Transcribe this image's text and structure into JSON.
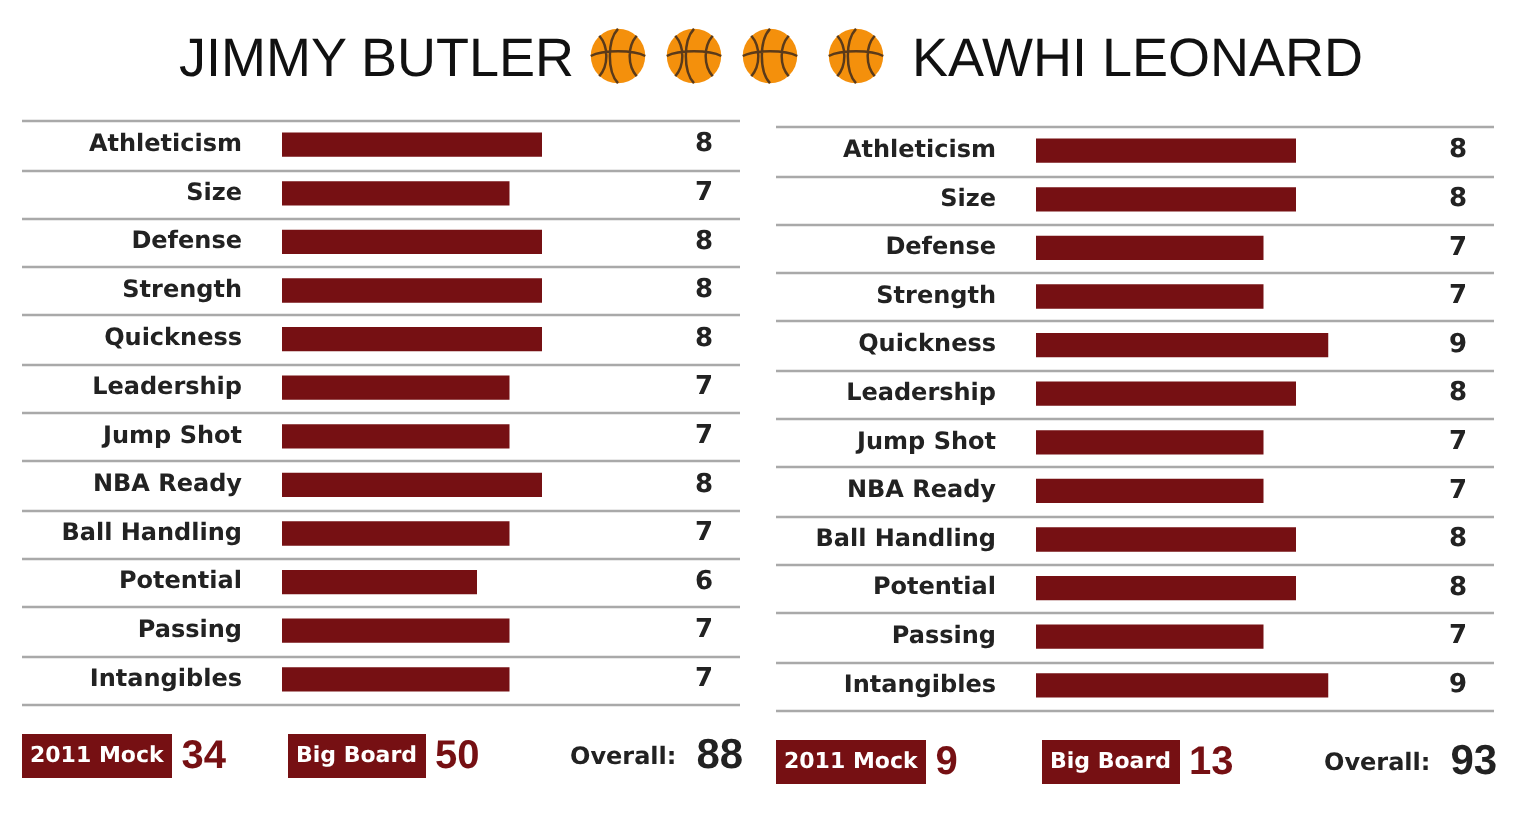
{
  "chart_data": [
    {
      "type": "bar",
      "orientation": "horizontal",
      "title": "JIMMY BUTLER",
      "categories": [
        "Athleticism",
        "Size",
        "Defense",
        "Strength",
        "Quickness",
        "Leadership",
        "Jump Shot",
        "NBA Ready",
        "Ball Handling",
        "Potential",
        "Passing",
        "Intangibles"
      ],
      "values": [
        8,
        7,
        8,
        8,
        8,
        7,
        7,
        8,
        7,
        6,
        7,
        7
      ],
      "color": "#761013",
      "tick_labels": "y",
      "grid": "y",
      "data_labels": true,
      "annotations": [
        "2011 Mock",
        "34",
        "Big Board",
        "50",
        "Overall:",
        "88"
      ]
    },
    {
      "type": "bar",
      "orientation": "horizontal",
      "title": "KAWHI LEONARD",
      "categories": [
        "Athleticism",
        "Size",
        "Defense",
        "Strength",
        "Quickness",
        "Leadership",
        "Jump Shot",
        "NBA Ready",
        "Ball Handling",
        "Potential",
        "Passing",
        "Intangibles"
      ],
      "values": [
        8,
        8,
        7,
        7,
        9,
        8,
        7,
        7,
        8,
        8,
        7,
        9
      ],
      "color": "#761013",
      "tick_labels": "y",
      "grid": "y",
      "data_labels": true,
      "annotations": [
        "2011 Mock",
        "9",
        "Big Board",
        "13",
        "Overall:",
        "93"
      ]
    }
  ]
}
